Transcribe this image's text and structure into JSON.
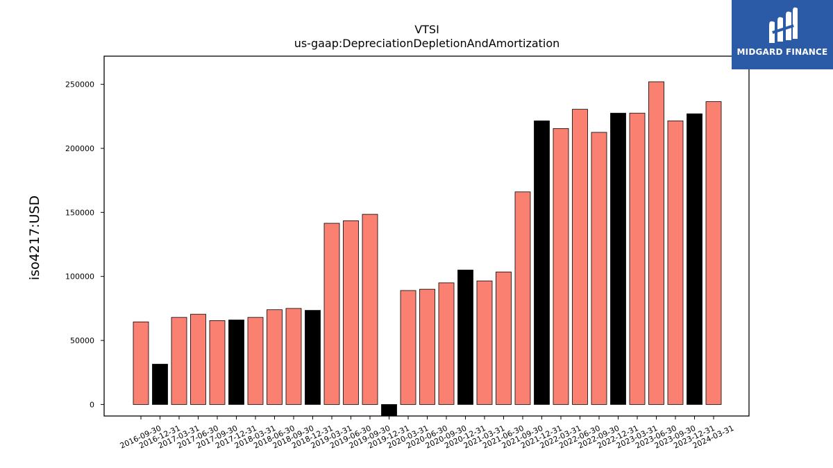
{
  "chart_data": {
    "type": "bar",
    "title": "VTSI",
    "subtitle": "us-gaap:DepreciationDepletionAndAmortization",
    "xlabel": "",
    "ylabel": "iso4217:USD",
    "ylim": [
      -9000,
      272000
    ],
    "yticks": [
      0,
      50000,
      100000,
      150000,
      200000,
      250000
    ],
    "grid": false,
    "legend": "none",
    "colors": {
      "default": "#fa8072",
      "highlight": "#000000",
      "edge": "#000000"
    },
    "categories": [
      "2016-09-30",
      "2016-12-31",
      "2017-03-31",
      "2017-06-30",
      "2017-09-30",
      "2017-12-31",
      "2018-03-31",
      "2018-06-30",
      "2018-09-30",
      "2018-12-31",
      "2019-03-31",
      "2019-06-30",
      "2019-09-30",
      "2019-12-31",
      "2020-03-31",
      "2020-06-30",
      "2020-09-30",
      "2020-12-31",
      "2021-03-31",
      "2021-06-30",
      "2021-09-30",
      "2021-12-31",
      "2022-03-31",
      "2022-06-30",
      "2022-09-30",
      "2022-12-31",
      "2023-03-31",
      "2023-06-30",
      "2023-09-30",
      "2023-12-31",
      "2024-03-31"
    ],
    "values": [
      64500,
      31500,
      68000,
      70500,
      65500,
      66000,
      68000,
      74000,
      75000,
      73500,
      141500,
      143500,
      148500,
      -9000,
      89000,
      90000,
      95000,
      105000,
      96500,
      103500,
      166000,
      221500,
      215500,
      230500,
      212500,
      227500,
      227500,
      252000,
      221500,
      227000,
      236500
    ],
    "highlight": [
      false,
      true,
      false,
      false,
      false,
      true,
      false,
      false,
      false,
      true,
      false,
      false,
      false,
      true,
      false,
      false,
      false,
      true,
      false,
      false,
      false,
      true,
      false,
      false,
      false,
      true,
      false,
      false,
      false,
      true,
      false
    ]
  },
  "logo": {
    "text": "MIDGARD FINANCE",
    "icon": "midgard-logo-icon",
    "background": "#2b5aa6"
  }
}
